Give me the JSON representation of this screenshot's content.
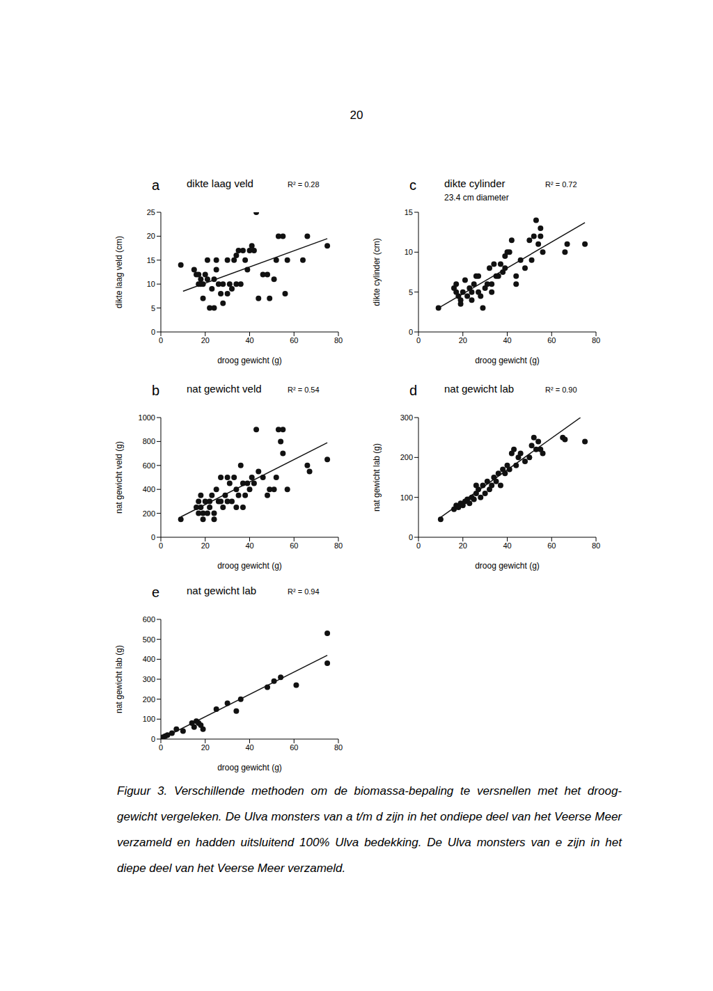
{
  "page_number": "20",
  "chart_data": [
    {
      "panel": "a",
      "type": "scatter",
      "title": "dikte laag veld",
      "annotation": "R² = 0.28",
      "x_label": "droog gewicht (g)",
      "y_label": "dikte laag veld (cm)",
      "x": [
        9,
        15,
        16,
        17,
        17,
        18,
        18,
        19,
        19,
        20,
        21,
        21,
        22,
        23,
        24,
        24,
        25,
        25,
        26,
        27,
        28,
        28,
        30,
        30,
        31,
        32,
        33,
        34,
        34,
        35,
        36,
        37,
        38,
        39,
        40,
        41,
        42,
        43,
        44,
        46,
        48,
        49,
        51,
        52,
        53,
        55,
        56,
        57,
        64,
        66,
        75
      ],
      "values": [
        14,
        13,
        12,
        12,
        10,
        11,
        10,
        7,
        10,
        12,
        11,
        15,
        5,
        9,
        5,
        11,
        13,
        15,
        10,
        8,
        6,
        10,
        8,
        15,
        10,
        9,
        15,
        16,
        10,
        17,
        10,
        17,
        15,
        13,
        17,
        18,
        17,
        25,
        7,
        12,
        12,
        7,
        11,
        15,
        20,
        20,
        8,
        15,
        15,
        20,
        18
      ],
      "fit_line": {
        "x": [
          10,
          75
        ],
        "values": [
          8.5,
          19.5
        ]
      },
      "xlim": [
        0,
        80
      ],
      "xticks": [
        0,
        20,
        40,
        60,
        80
      ],
      "ylim": [
        0,
        25
      ],
      "yticks": [
        0,
        5,
        10,
        15,
        20,
        25
      ],
      "color": "#111111",
      "marker": "circle"
    },
    {
      "panel": "b",
      "type": "scatter",
      "title": "nat gewicht veld",
      "annotation": "R² = 0.54",
      "x_label": "droog gewicht (g)",
      "y_label": "nat gewicht veld (g)",
      "x": [
        9,
        16,
        17,
        17,
        18,
        18,
        19,
        19,
        20,
        21,
        22,
        22,
        23,
        24,
        24,
        25,
        26,
        27,
        27,
        28,
        29,
        30,
        30,
        31,
        32,
        33,
        34,
        34,
        35,
        36,
        37,
        37,
        38,
        39,
        40,
        41,
        42,
        43,
        44,
        46,
        48,
        49,
        51,
        52,
        53,
        54,
        55,
        55,
        57,
        66,
        67,
        75
      ],
      "values": [
        150,
        250,
        200,
        300,
        350,
        250,
        200,
        150,
        300,
        200,
        300,
        250,
        350,
        200,
        150,
        400,
        300,
        300,
        500,
        250,
        350,
        500,
        300,
        450,
        300,
        500,
        250,
        400,
        350,
        600,
        250,
        450,
        350,
        450,
        400,
        500,
        450,
        900,
        550,
        500,
        350,
        400,
        400,
        500,
        900,
        800,
        900,
        700,
        400,
        600,
        550,
        650
      ],
      "fit_line": {
        "x": [
          9,
          75
        ],
        "values": [
          170,
          790
        ]
      },
      "xlim": [
        0,
        80
      ],
      "xticks": [
        0,
        20,
        40,
        60,
        80
      ],
      "ylim": [
        0,
        1000
      ],
      "yticks": [
        0,
        200,
        400,
        600,
        800,
        1000
      ],
      "color": "#111111",
      "marker": "circle"
    },
    {
      "panel": "c",
      "type": "scatter",
      "title": "dikte cylinder",
      "subtitle": "23.4 cm diameter",
      "annotation": "R² = 0.72",
      "x_label": "droog gewicht (g)",
      "y_label": "dikte cylinder (cm)",
      "x": [
        9,
        16,
        17,
        17,
        18,
        19,
        19,
        20,
        21,
        22,
        23,
        24,
        24,
        25,
        26,
        27,
        27,
        28,
        29,
        30,
        31,
        32,
        33,
        33,
        34,
        35,
        36,
        37,
        38,
        39,
        39,
        40,
        41,
        42,
        44,
        44,
        46,
        48,
        50,
        51,
        52,
        53,
        54,
        55,
        55,
        56,
        66,
        67,
        75
      ],
      "values": [
        3,
        5.5,
        6,
        5,
        4.5,
        4,
        3.5,
        5,
        6.5,
        4.5,
        5.5,
        4,
        5,
        6,
        7,
        5,
        7,
        4.5,
        3,
        5.5,
        6,
        8,
        5,
        6,
        8.5,
        7,
        7,
        8.5,
        7.5,
        8,
        9.5,
        10,
        10,
        11.5,
        6,
        7,
        9,
        8,
        11.5,
        9,
        12,
        14,
        11,
        13,
        12,
        10,
        10,
        11,
        11
      ],
      "fit_line": {
        "x": [
          9,
          75
        ],
        "values": [
          3,
          13.7
        ]
      },
      "xlim": [
        0,
        80
      ],
      "xticks": [
        0,
        20,
        40,
        60,
        80
      ],
      "ylim": [
        0,
        15
      ],
      "yticks": [
        0,
        5,
        10,
        15
      ],
      "color": "#111111",
      "marker": "circle"
    },
    {
      "panel": "d",
      "type": "scatter",
      "title": "nat gewicht lab",
      "annotation": "R² = 0.90",
      "x_label": "droog gewicht (g)",
      "y_label": "nat gewicht lab (g)",
      "x": [
        10,
        16,
        17,
        18,
        19,
        20,
        21,
        22,
        23,
        24,
        25,
        26,
        26,
        27,
        28,
        29,
        30,
        31,
        32,
        33,
        34,
        35,
        36,
        37,
        38,
        39,
        40,
        41,
        42,
        43,
        44,
        45,
        46,
        48,
        50,
        51,
        52,
        53,
        54,
        55,
        56,
        65,
        66,
        75
      ],
      "values": [
        45,
        70,
        80,
        75,
        85,
        80,
        90,
        95,
        85,
        100,
        95,
        110,
        130,
        120,
        100,
        130,
        110,
        140,
        120,
        130,
        150,
        140,
        160,
        130,
        170,
        160,
        180,
        170,
        210,
        220,
        180,
        200,
        210,
        190,
        200,
        230,
        250,
        220,
        240,
        220,
        210,
        250,
        245,
        240
      ],
      "fit_line": {
        "x": [
          10,
          73
        ],
        "values": [
          50,
          300
        ]
      },
      "xlim": [
        0,
        80
      ],
      "xticks": [
        0,
        20,
        40,
        60,
        80
      ],
      "ylim": [
        0,
        300
      ],
      "yticks": [
        0,
        100,
        200,
        300
      ],
      "color": "#111111",
      "marker": "circle"
    },
    {
      "panel": "e",
      "type": "scatter",
      "title": "nat gewicht lab",
      "annotation": "R² = 0.94",
      "x_label": "droog gewicht (g)",
      "y_label": "nat gewicht lab (g)",
      "x": [
        0,
        1,
        2,
        3,
        5,
        7,
        10,
        14,
        15,
        16,
        17,
        18,
        19,
        25,
        30,
        34,
        36,
        48,
        51,
        54,
        61,
        75,
        75
      ],
      "values": [
        0,
        10,
        15,
        20,
        30,
        50,
        40,
        80,
        60,
        90,
        80,
        70,
        50,
        150,
        180,
        140,
        200,
        260,
        290,
        310,
        270,
        530,
        380
      ],
      "fit_line": {
        "x": [
          0,
          75
        ],
        "values": [
          0,
          420
        ]
      },
      "xlim": [
        0,
        80
      ],
      "xticks": [
        0,
        20,
        40,
        60,
        80
      ],
      "ylim": [
        0,
        600
      ],
      "yticks": [
        0,
        100,
        200,
        300,
        400,
        500,
        600
      ],
      "color": "#111111",
      "marker": "circle"
    }
  ],
  "caption": "Figuur 3. Verschillende methoden om de biomassa-bepaling te versnellen met het droog-gewicht vergeleken. De Ulva monsters van a t/m d zijn in het ondiepe deel van het Veerse Meer verzameld en hadden uitsluitend 100% Ulva bedekking. De Ulva monsters van e zijn in het diepe deel van het Veerse Meer verzameld."
}
